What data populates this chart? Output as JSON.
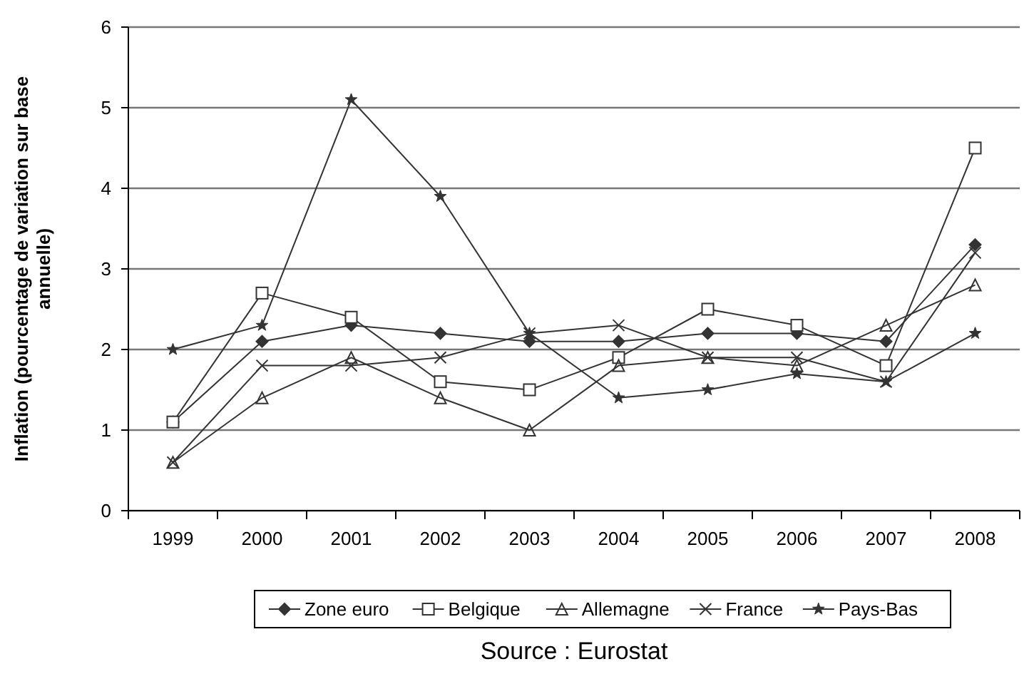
{
  "chart_data": {
    "type": "line",
    "ylabel": "Inflation (pourcentage de variation sur base annuelle)",
    "categories": [
      "1999",
      "2000",
      "2001",
      "2002",
      "2003",
      "2004",
      "2005",
      "2006",
      "2007",
      "2008"
    ],
    "series": [
      {
        "name": "Zone euro",
        "color": "#333333",
        "marker": "diamond",
        "values": [
          1.1,
          2.1,
          2.3,
          2.2,
          2.1,
          2.1,
          2.2,
          2.2,
          2.1,
          3.3
        ]
      },
      {
        "name": "Belgique",
        "color": "#333333",
        "marker": "square",
        "values": [
          1.1,
          2.7,
          2.4,
          1.6,
          1.5,
          1.9,
          2.5,
          2.3,
          1.8,
          4.5
        ]
      },
      {
        "name": "Allemagne",
        "color": "#333333",
        "marker": "triangle",
        "values": [
          0.6,
          1.4,
          1.9,
          1.4,
          1.0,
          1.8,
          1.9,
          1.8,
          2.3,
          2.8
        ]
      },
      {
        "name": "France",
        "color": "#333333",
        "marker": "cross",
        "values": [
          0.6,
          1.8,
          1.8,
          1.9,
          2.2,
          2.3,
          1.9,
          1.9,
          1.6,
          3.2
        ]
      },
      {
        "name": "Pays-Bas",
        "color": "#333333",
        "marker": "star",
        "values": [
          2.0,
          2.3,
          5.1,
          3.9,
          2.2,
          1.4,
          1.5,
          1.7,
          1.6,
          2.2
        ]
      }
    ],
    "ylim": [
      0,
      6
    ],
    "yticks": [
      0,
      1,
      2,
      3,
      4,
      5,
      6
    ],
    "grid": "y",
    "legend": "bottom",
    "line_style": "solid",
    "annotations": [
      "Source : Eurostat"
    ]
  }
}
